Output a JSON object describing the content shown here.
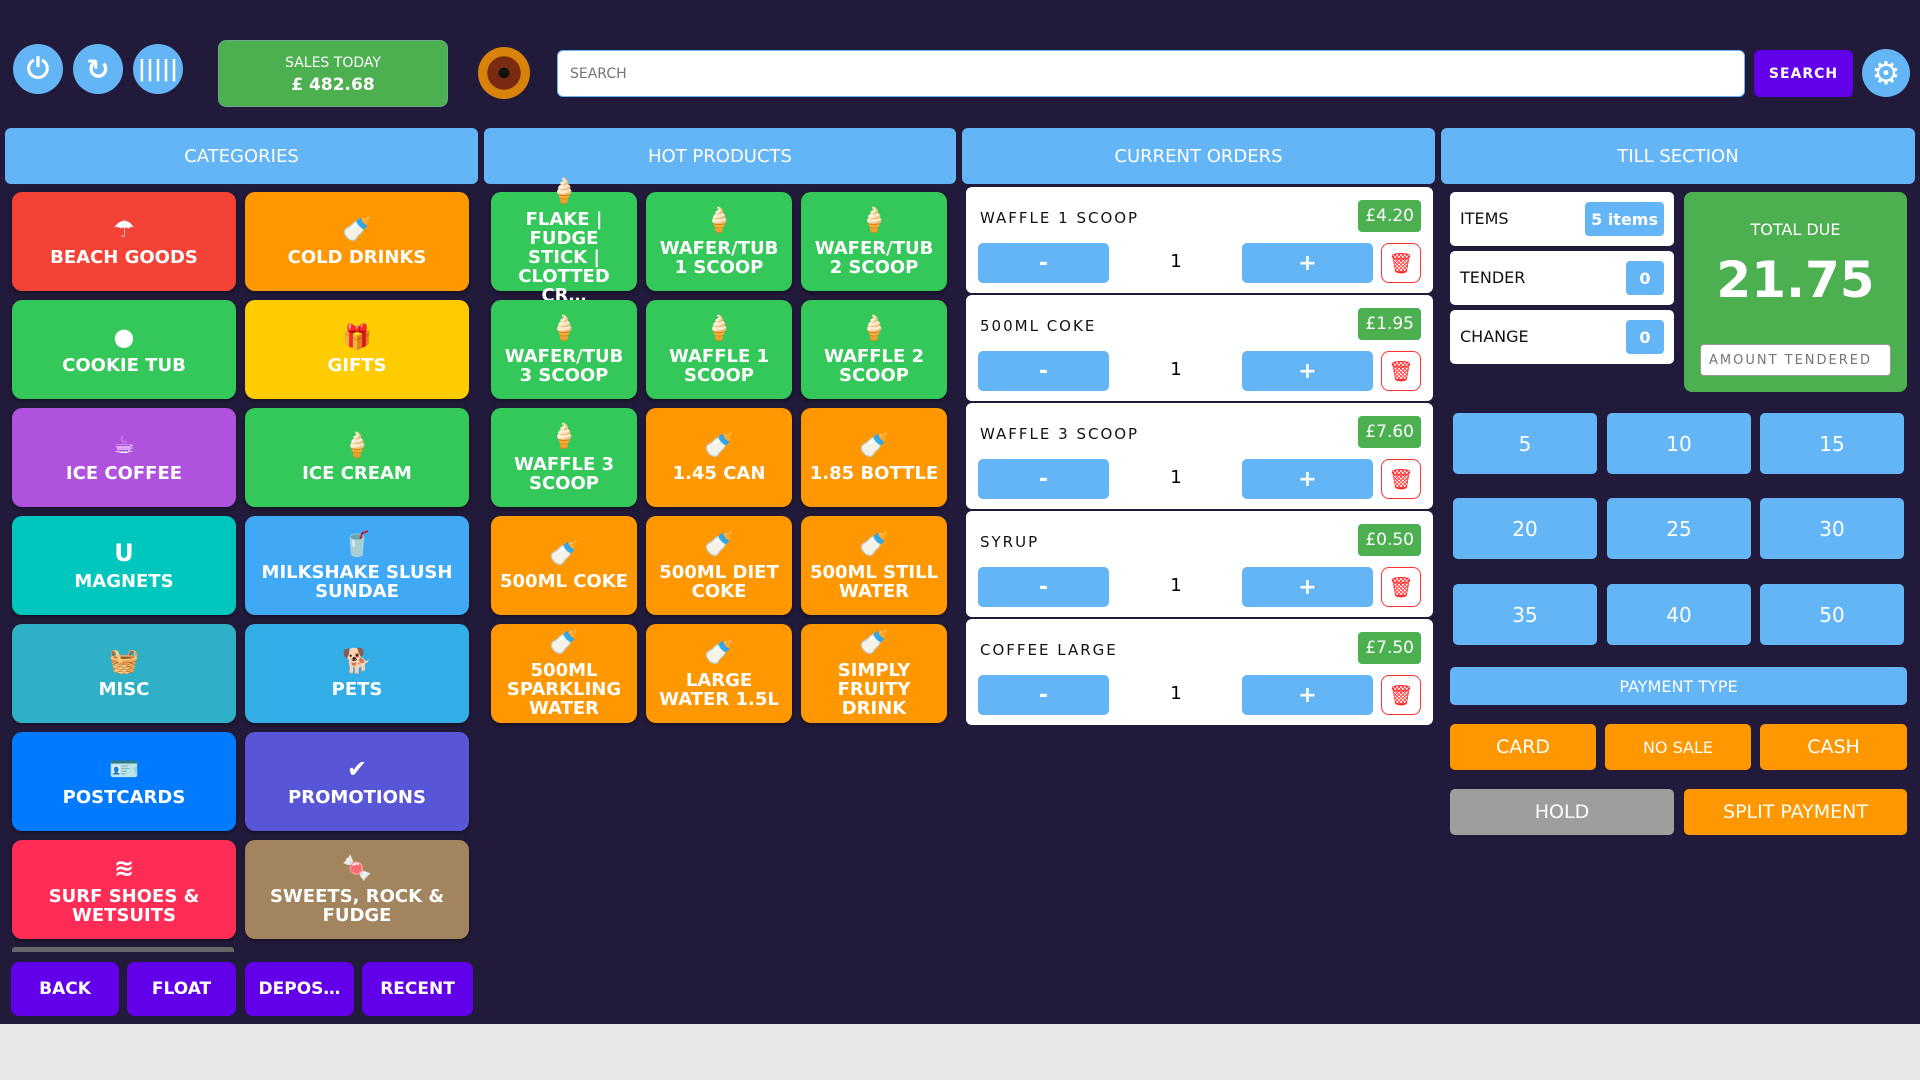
{
  "header": {
    "sales_label": "SALES TODAY",
    "sales_value": "£ 482.68",
    "search_placeholder": "SEARCH",
    "search_button": "SEARCH"
  },
  "panels": {
    "categories": "CATEGORIES",
    "hot_products": "HOT PRODUCTS",
    "current_orders": "CURRENT ORDERS",
    "till_section": "TILL SECTION"
  },
  "categories": [
    {
      "label": "BEACH GOODS",
      "icon": "☂",
      "color": "#f44336"
    },
    {
      "label": "COLD DRINKS",
      "icon": "🍼",
      "color": "#ff9800"
    },
    {
      "label": "COOKIE TUB",
      "icon": "●",
      "color": "#34c759"
    },
    {
      "label": "GIFTS",
      "icon": "🎁",
      "color": "#ffcc00"
    },
    {
      "label": "ICE COFFEE",
      "icon": "☕",
      "color": "#af52de"
    },
    {
      "label": "ICE CREAM",
      "icon": "🍦",
      "color": "#34c759"
    },
    {
      "label": "MAGNETS",
      "icon": "U",
      "color": "#00c7be"
    },
    {
      "label": "MILKSHAKE SLUSH SUNDAE",
      "icon": "🥤",
      "color": "#3fa9f5"
    },
    {
      "label": "MISC",
      "icon": "🧺",
      "color": "#30b0c7"
    },
    {
      "label": "PETS",
      "icon": "🐕",
      "color": "#32ade6"
    },
    {
      "label": "POSTCARDS",
      "icon": "🪪",
      "color": "#007aff"
    },
    {
      "label": "PROMOTIONS",
      "icon": "✔",
      "color": "#5856d6"
    },
    {
      "label": "SURF SHOES & WETSUITS",
      "icon": "≋",
      "color": "#ff2d55"
    },
    {
      "label": "SWEETS, ROCK & FUDGE",
      "icon": "🍬",
      "color": "#a2845e"
    }
  ],
  "hot_products": [
    {
      "label": "FLAKE | FUDGE STICK | CLOTTED CR…",
      "icon": "🍦",
      "color": "#34c759"
    },
    {
      "label": "WAFER/TUB 1 SCOOP",
      "icon": "🍦",
      "color": "#34c759"
    },
    {
      "label": "WAFER/TUB 2 SCOOP",
      "icon": "🍦",
      "color": "#34c759"
    },
    {
      "label": "WAFER/TUB 3 SCOOP",
      "icon": "🍦",
      "color": "#34c759"
    },
    {
      "label": "WAFFLE 1 SCOOP",
      "icon": "🍦",
      "color": "#34c759"
    },
    {
      "label": "WAFFLE 2 SCOOP",
      "icon": "🍦",
      "color": "#34c759"
    },
    {
      "label": "WAFFLE 3 SCOOP",
      "icon": "🍦",
      "color": "#34c759"
    },
    {
      "label": "1.45 CAN",
      "icon": "🍼",
      "color": "#ff9800"
    },
    {
      "label": "1.85 BOTTLE",
      "icon": "🍼",
      "color": "#ff9800"
    },
    {
      "label": "500ML COKE",
      "icon": "🍼",
      "color": "#ff9800"
    },
    {
      "label": "500ML DIET COKE",
      "icon": "🍼",
      "color": "#ff9800"
    },
    {
      "label": "500ML STILL WATER",
      "icon": "🍼",
      "color": "#ff9800"
    },
    {
      "label": "500ML SPARKLING WATER",
      "icon": "🍼",
      "color": "#ff9800"
    },
    {
      "label": "LARGE WATER 1.5L",
      "icon": "🍼",
      "color": "#ff9800"
    },
    {
      "label": "SIMPLY FRUITY DRINK",
      "icon": "🍼",
      "color": "#ff9800"
    }
  ],
  "bottom_buttons": [
    "BACK",
    "FLOAT",
    "DEPOS…",
    "RECENT"
  ],
  "orders": [
    {
      "name": "WAFFLE 1 SCOOP",
      "price": "£4.20",
      "qty": "1"
    },
    {
      "name": "500ML COKE",
      "price": "£1.95",
      "qty": "1"
    },
    {
      "name": "WAFFLE 3 SCOOP",
      "price": "£7.60",
      "qty": "1"
    },
    {
      "name": "SYRUP",
      "price": "£0.50",
      "qty": "1"
    },
    {
      "name": "COFFEE LARGE",
      "price": "£7.50",
      "qty": "1"
    }
  ],
  "order_controls": {
    "minus": "-",
    "plus": "+"
  },
  "till": {
    "items_label": "ITEMS",
    "items_value": "5 items",
    "tender_label": "TENDER",
    "tender_value": "0",
    "change_label": "CHANGE",
    "change_value": "0",
    "total_label": "TOTAL DUE",
    "total_value": "21.75",
    "amount_placeholder": "AMOUNT TENDERED",
    "quick_amounts": [
      "5",
      "10",
      "15",
      "20",
      "25",
      "30",
      "35",
      "40",
      "50"
    ],
    "payment_type": "PAYMENT TYPE",
    "card": "CARD",
    "no_sale": "NO SALE",
    "cash": "CASH",
    "hold": "HOLD",
    "split": "SPLIT PAYMENT"
  }
}
